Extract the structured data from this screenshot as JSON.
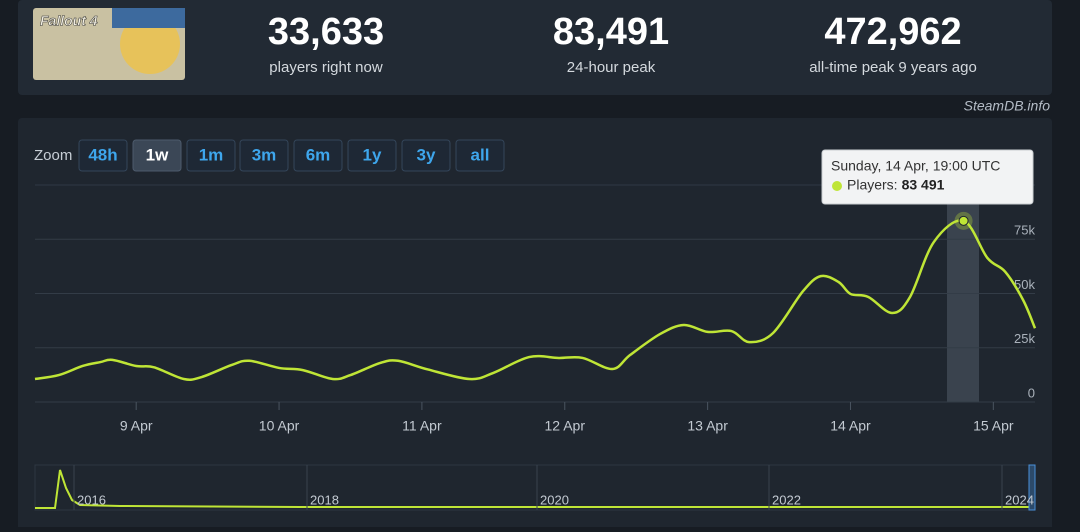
{
  "header": {
    "game": "Fallout 4",
    "stats": [
      {
        "value": "33,633",
        "label": "players right now"
      },
      {
        "value": "83,491",
        "label": "24-hour peak"
      },
      {
        "value": "472,962",
        "label": "all-time peak 9 years ago"
      }
    ],
    "source": "SteamDB.info"
  },
  "zoom": {
    "label": "Zoom",
    "buttons": [
      "48h",
      "1w",
      "1m",
      "3m",
      "6m",
      "1y",
      "3y",
      "all"
    ],
    "active": 1
  },
  "chart_data": {
    "type": "line",
    "x": [
      "8 Apr 07:00",
      "8 Apr 11:00",
      "8 Apr 15:00",
      "8 Apr 18:00",
      "8 Apr 20:00",
      "9 Apr 00:00",
      "9 Apr 03:00",
      "9 Apr 08:00",
      "9 Apr 11:00",
      "9 Apr 16:00",
      "9 Apr 19:00",
      "10 Apr 00:00",
      "10 Apr 04:00",
      "10 Apr 09:00",
      "10 Apr 12:00",
      "10 Apr 17:00",
      "10 Apr 20:00",
      "11 Apr 01:00",
      "11 Apr 08:00",
      "11 Apr 12:00",
      "11 Apr 18:00",
      "11 Apr 23:00",
      "12 Apr 03:00",
      "12 Apr 08:00",
      "12 Apr 11:00",
      "12 Apr 16:00",
      "12 Apr 20:00",
      "13 Apr 00:00",
      "13 Apr 04:00",
      "13 Apr 07:00",
      "13 Apr 11:00",
      "13 Apr 16:00",
      "13 Apr 19:00",
      "13 Apr 22:00",
      "14 Apr 00:00",
      "14 Apr 03:00",
      "14 Apr 07:00",
      "14 Apr 10:00",
      "14 Apr 14:00",
      "14 Apr 19:00",
      "14 Apr 23:00",
      "15 Apr 02:00",
      "15 Apr 05:00",
      "15 Apr 07:00"
    ],
    "series": [
      {
        "name": "Players:",
        "color": "#bfe536",
        "values": [
          10600,
          12400,
          16600,
          18400,
          19400,
          16600,
          16000,
          10600,
          11500,
          17000,
          19000,
          15700,
          14700,
          10600,
          12400,
          18000,
          19000,
          15000,
          10600,
          13400,
          20700,
          20300,
          20300,
          15200,
          21700,
          31300,
          35500,
          32300,
          32700,
          27600,
          31800,
          51000,
          58000,
          55300,
          49800,
          48400,
          41000,
          48400,
          73700,
          83491,
          66400,
          60000,
          47000,
          34000
        ]
      }
    ],
    "xlim": [
      "8 Apr 07:00",
      "15 Apr 07:00"
    ],
    "xticks": [
      "9 Apr",
      "10 Apr",
      "11 Apr",
      "12 Apr",
      "13 Apr",
      "14 Apr",
      "15 Apr"
    ],
    "ylim": [
      0,
      100000
    ],
    "yticks": [
      0,
      {
        "value": 25000,
        "label": "25k"
      },
      {
        "value": 50000,
        "label": "50k"
      },
      {
        "value": 75000,
        "label": "75k"
      }
    ],
    "grid": true,
    "tooltip": {
      "title": "Sunday, 14 Apr, 19:00 UTC",
      "value_label": "83 491"
    }
  },
  "navigator": {
    "labels": [
      "2016",
      "2018",
      "2020",
      "2022",
      "2024"
    ]
  }
}
